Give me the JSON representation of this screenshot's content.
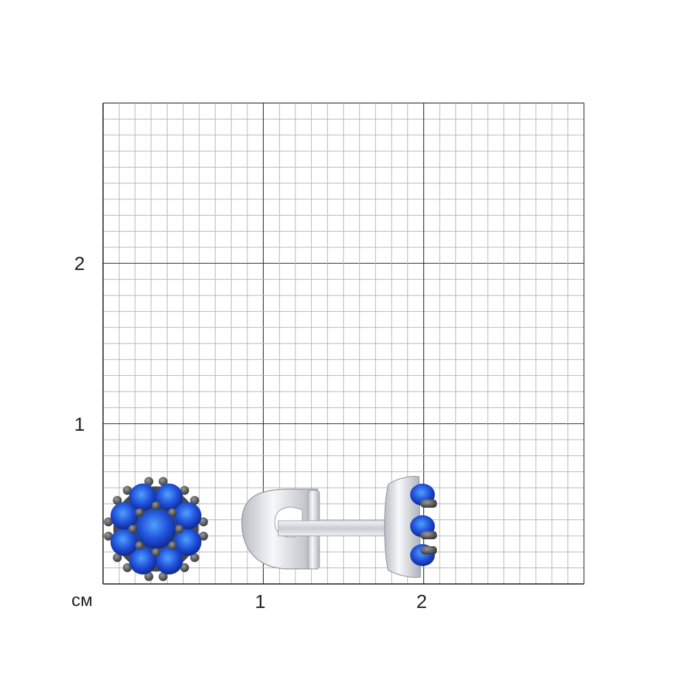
{
  "scale": {
    "unit_label": "см",
    "x_tick_labels": [
      "1",
      "2"
    ],
    "y_tick_labels": [
      "2",
      "1"
    ],
    "range_cm": [
      0,
      3
    ],
    "minor_step_mm": 1
  },
  "product": {
    "type": "stud earring",
    "stone_color": "#1f4fd8",
    "metal_color": "#d8dce2",
    "prong_color": "#5a5a5a"
  }
}
